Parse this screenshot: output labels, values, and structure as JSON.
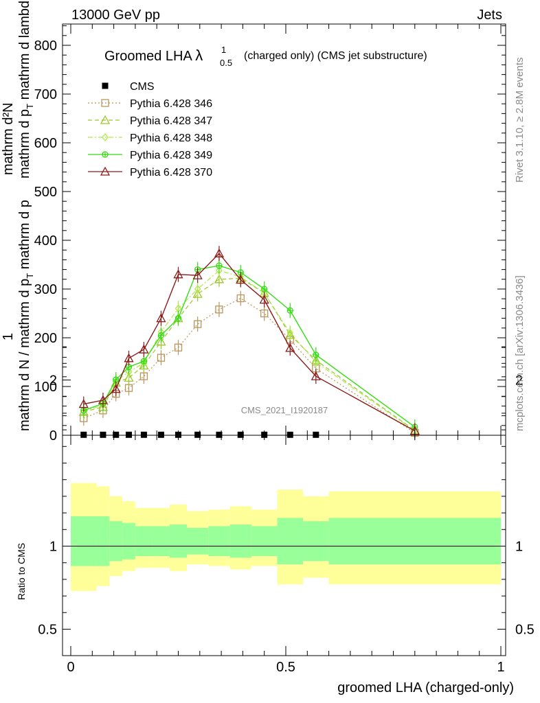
{
  "header": {
    "left": "13000 GeV pp",
    "right": "Jets"
  },
  "side": {
    "rivet": "Rivet 3.1.10, ≥ 2.8M events",
    "mcplots": "mcplots.cern.ch [arXiv:1306.3436]"
  },
  "plot": {
    "title_main": "Groomed LHA ",
    "title_lambda": "λ",
    "title_sup": "1",
    "title_sub": "0.5",
    "title_rest": "(charged only) (CMS jet substructure)",
    "analysis_id": "CMS_2021_I1920187",
    "ylabel_top": "1",
    "ylabel_bottom": "mathrm d N / mathrm d p",
    "ylabel_bottom_sub": "T",
    "ylabel_bottom_rest": " mathrm d p",
    "ylabel_top_expr": "mathrm d²N",
    "ylabel_top_expr2": "mathrm d p",
    "ylabel_top_sub": "T",
    "ylabel_top_rest": " mathrm d lambda",
    "ratio_ylabel": "Ratio to CMS",
    "xlabel": "groomed LHA (charged-only)"
  },
  "chart_data": {
    "type": "line",
    "title": "Groomed LHA λ^1_0.5 (charged only) (CMS jet substructure)",
    "xlabel": "groomed LHA (charged-only)",
    "ylabel": "1 / (mathrm d N / mathrm d p_T mathrm d p) · mathrm d²N / (mathrm d p_T mathrm d lambda)",
    "xlim": [
      0,
      1
    ],
    "ylim": [
      0,
      850
    ],
    "x_ticks": [
      "0",
      "0.5",
      "1"
    ],
    "y_ticks": [
      "0",
      "100",
      "200",
      "300",
      "400",
      "500",
      "600",
      "700",
      "800"
    ],
    "legend_position": "top-left",
    "x": [
      0.03,
      0.075,
      0.105,
      0.135,
      0.17,
      0.21,
      0.25,
      0.295,
      0.345,
      0.395,
      0.45,
      0.51,
      0.57,
      0.8
    ],
    "series": [
      {
        "name": "CMS",
        "color": "#000000",
        "marker": "square-filled",
        "line": "none",
        "values": [
          1,
          1,
          1,
          1,
          1,
          1,
          1,
          1,
          1,
          1,
          1,
          1,
          1,
          null
        ]
      },
      {
        "name": "Pythia 6.428 346",
        "color": "#b8955a",
        "marker": "square-open",
        "line": "dotted",
        "values": [
          35,
          51,
          85,
          97,
          121,
          159,
          180,
          228,
          258,
          281,
          250,
          196,
          137,
          5
        ]
      },
      {
        "name": "Pythia 6.428 347",
        "color": "#9cc62b",
        "marker": "triangle-open",
        "line": "dashed",
        "values": [
          48,
          58,
          108,
          118,
          143,
          192,
          240,
          290,
          320,
          322,
          292,
          206,
          154,
          10
        ]
      },
      {
        "name": "Pythia 6.428 348",
        "color": "#aee84a",
        "marker": "diamond-open",
        "line": "dashdot",
        "values": [
          49,
          62,
          110,
          130,
          148,
          212,
          260,
          300,
          338,
          325,
          292,
          210,
          150,
          9
        ]
      },
      {
        "name": "Pythia 6.428 349",
        "color": "#33dd11",
        "marker": "circle-cross",
        "line": "solid",
        "values": [
          51,
          65,
          114,
          140,
          152,
          205,
          240,
          340,
          348,
          334,
          300,
          256,
          165,
          17
        ]
      },
      {
        "name": "Pythia 6.428 370",
        "color": "#8b1a1a",
        "marker": "triangle-open",
        "line": "solid",
        "values": [
          64,
          72,
          95,
          158,
          176,
          240,
          330,
          328,
          373,
          319,
          278,
          179,
          121,
          9
        ]
      }
    ],
    "ratio": {
      "ylabel": "Ratio to CMS",
      "ylim": [
        0.4,
        2.3
      ],
      "y_ticks": [
        "0.5",
        "1",
        "2"
      ],
      "bins": [
        {
          "lo": 0.0,
          "hi": 0.06,
          "inner_lo": 0.88,
          "inner_hi": 1.18,
          "outer_lo": 0.73,
          "outer_hi": 1.38
        },
        {
          "lo": 0.06,
          "hi": 0.09,
          "inner_lo": 0.88,
          "inner_hi": 1.18,
          "outer_lo": 0.76,
          "outer_hi": 1.36
        },
        {
          "lo": 0.09,
          "hi": 0.12,
          "inner_lo": 0.91,
          "inner_hi": 1.15,
          "outer_lo": 0.82,
          "outer_hi": 1.3
        },
        {
          "lo": 0.12,
          "hi": 0.15,
          "inner_lo": 0.92,
          "inner_hi": 1.14,
          "outer_lo": 0.85,
          "outer_hi": 1.27
        },
        {
          "lo": 0.15,
          "hi": 0.19,
          "inner_lo": 0.94,
          "inner_hi": 1.12,
          "outer_lo": 0.87,
          "outer_hi": 1.23
        },
        {
          "lo": 0.19,
          "hi": 0.23,
          "inner_lo": 0.94,
          "inner_hi": 1.12,
          "outer_lo": 0.87,
          "outer_hi": 1.23
        },
        {
          "lo": 0.23,
          "hi": 0.27,
          "inner_lo": 0.93,
          "inner_hi": 1.13,
          "outer_lo": 0.85,
          "outer_hi": 1.25
        },
        {
          "lo": 0.27,
          "hi": 0.32,
          "inner_lo": 0.95,
          "inner_hi": 1.11,
          "outer_lo": 0.89,
          "outer_hi": 1.21
        },
        {
          "lo": 0.32,
          "hi": 0.37,
          "inner_lo": 0.94,
          "inner_hi": 1.12,
          "outer_lo": 0.88,
          "outer_hi": 1.22
        },
        {
          "lo": 0.37,
          "hi": 0.42,
          "inner_lo": 0.93,
          "inner_hi": 1.13,
          "outer_lo": 0.86,
          "outer_hi": 1.24
        },
        {
          "lo": 0.42,
          "hi": 0.48,
          "inner_lo": 0.94,
          "inner_hi": 1.12,
          "outer_lo": 0.88,
          "outer_hi": 1.22
        },
        {
          "lo": 0.48,
          "hi": 0.54,
          "inner_lo": 0.89,
          "inner_hi": 1.17,
          "outer_lo": 0.77,
          "outer_hi": 1.34
        },
        {
          "lo": 0.54,
          "hi": 0.6,
          "inner_lo": 0.91,
          "inner_hi": 1.15,
          "outer_lo": 0.81,
          "outer_hi": 1.3
        },
        {
          "lo": 0.6,
          "hi": 1.0,
          "inner_lo": 0.89,
          "inner_hi": 1.17,
          "outer_lo": 0.77,
          "outer_hi": 1.33
        }
      ],
      "inner_color": "#99ff99",
      "outer_color": "#ffff99"
    }
  }
}
